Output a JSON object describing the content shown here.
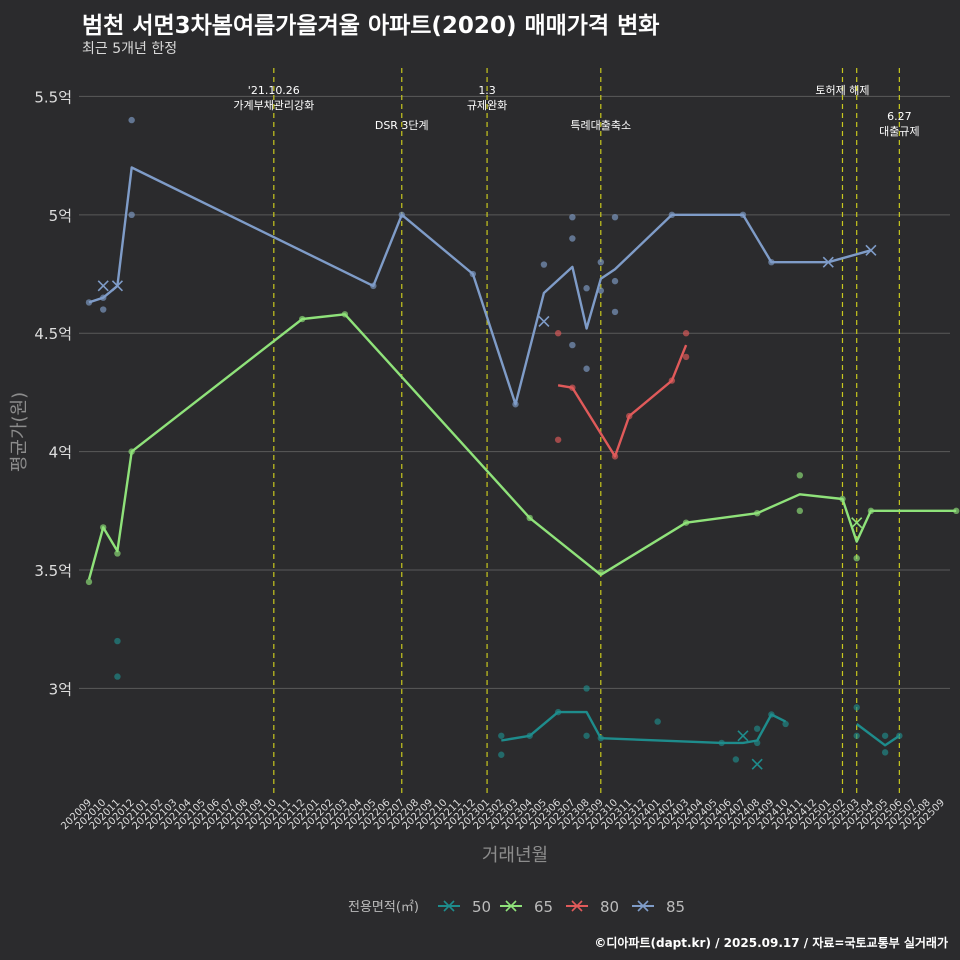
{
  "header": {
    "title": "범천 서면3차봄여름가을겨울 아파트(2020) 매매가격 변화",
    "subtitle": "최근 5개년 한정"
  },
  "footer": {
    "credit": "©디아파트(dapt.kr) / 2025.09.17 / 자료=국토교통부 실거래가"
  },
  "colors": {
    "background": "#2b2b2d",
    "grid": "#5a5a5a",
    "event_line": "#c8c81e",
    "s50": "#1e8c8c",
    "s65": "#8fe27a",
    "s80": "#e05a5a",
    "s85": "#7f9cc8"
  },
  "chart_data": {
    "type": "line",
    "title": "범천 서면3차봄여름가을겨울 아파트(2020) 매매가격 변화",
    "xlabel": "거래년월",
    "ylabel": "평균가(원)",
    "ylim": [
      2.55,
      5.62
    ],
    "yticks": [
      {
        "value": 3,
        "label": "3억"
      },
      {
        "value": 3.5,
        "label": "3.5억"
      },
      {
        "value": 4,
        "label": "4억"
      },
      {
        "value": 4.5,
        "label": "4.5억"
      },
      {
        "value": 5,
        "label": "5억"
      },
      {
        "value": 5.5,
        "label": "5.5억"
      }
    ],
    "categories": [
      "202009",
      "202010",
      "202011",
      "202012",
      "202101",
      "202102",
      "202103",
      "202104",
      "202105",
      "202106",
      "202107",
      "202108",
      "202109",
      "202110",
      "202111",
      "202112",
      "202201",
      "202202",
      "202203",
      "202204",
      "202205",
      "202206",
      "202207",
      "202208",
      "202209",
      "202210",
      "202211",
      "202212",
      "202301",
      "202302",
      "202303",
      "202304",
      "202305",
      "202306",
      "202307",
      "202308",
      "202309",
      "202310",
      "202311",
      "202312",
      "202401",
      "202402",
      "202403",
      "202404",
      "202405",
      "202406",
      "202407",
      "202408",
      "202409",
      "202410",
      "202411",
      "202412",
      "202501",
      "202502",
      "202503",
      "202504",
      "202505",
      "202506",
      "202507",
      "202508",
      "202509"
    ],
    "legend": {
      "title": "전용면적(㎡)",
      "position": "bottom",
      "entries": [
        "50",
        "65",
        "80",
        "85"
      ]
    },
    "events": [
      {
        "x": 13.0,
        "lines": [
          "'21.10.26",
          "가계부채관리강화"
        ],
        "row": 0
      },
      {
        "x": 22.0,
        "lines": [
          "DSR 3단계"
        ],
        "row": 1
      },
      {
        "x": 28.0,
        "lines": [
          "1.3",
          "규제완화"
        ],
        "row": 0
      },
      {
        "x": 36.0,
        "lines": [
          "특례대출축소"
        ],
        "row": 1
      },
      {
        "x": 53.0,
        "lines": [
          "토허제 해제"
        ],
        "row": 0
      },
      {
        "x": 54.0,
        "lines": [],
        "row": 0
      },
      {
        "x": 57.0,
        "lines": [
          "6.27",
          "대출규제"
        ],
        "row": 1
      }
    ],
    "series": [
      {
        "name": "50",
        "color": "#1e8c8c",
        "line": [
          [
            29,
            2.78
          ],
          [
            31,
            2.8
          ],
          [
            33,
            2.9
          ],
          [
            35,
            2.9
          ],
          [
            36,
            2.79
          ],
          [
            44.5,
            2.77
          ],
          [
            46,
            2.77
          ],
          [
            47,
            2.78
          ],
          [
            48,
            2.89
          ],
          [
            49,
            2.86
          ]
        ],
        "line2": [
          [
            54,
            2.85
          ],
          [
            56,
            2.76
          ],
          [
            57,
            2.8
          ]
        ],
        "points": [
          [
            2,
            3.2
          ],
          [
            2,
            3.05
          ],
          [
            29,
            2.8
          ],
          [
            29,
            2.72
          ],
          [
            31,
            2.8
          ],
          [
            33,
            2.9
          ],
          [
            35,
            3.0
          ],
          [
            35,
            2.8
          ],
          [
            36,
            2.79
          ],
          [
            40,
            2.86
          ],
          [
            44.5,
            2.77
          ],
          [
            45.5,
            2.7
          ],
          [
            47,
            2.83
          ],
          [
            47,
            2.77
          ],
          [
            48,
            2.89
          ],
          [
            49,
            2.85
          ],
          [
            54,
            2.92
          ],
          [
            54,
            2.8
          ],
          [
            56,
            2.8
          ],
          [
            56,
            2.73
          ],
          [
            57,
            2.8
          ]
        ],
        "crosses": [
          [
            46,
            2.8
          ],
          [
            47,
            2.68
          ]
        ]
      },
      {
        "name": "65",
        "color": "#8fe27a",
        "line": [
          [
            0,
            3.46
          ],
          [
            1,
            3.68
          ],
          [
            2,
            3.58
          ],
          [
            3,
            4.0
          ],
          [
            15,
            4.56
          ],
          [
            18,
            4.58
          ],
          [
            31,
            3.72
          ],
          [
            36,
            3.48
          ],
          [
            42,
            3.7
          ],
          [
            47,
            3.74
          ],
          [
            50,
            3.82
          ],
          [
            53,
            3.8
          ],
          [
            54,
            3.62
          ],
          [
            55,
            3.75
          ],
          [
            61,
            3.75
          ]
        ],
        "points": [
          [
            0,
            3.45
          ],
          [
            1,
            3.68
          ],
          [
            2,
            3.57
          ],
          [
            3,
            4.0
          ],
          [
            15,
            4.56
          ],
          [
            18,
            4.58
          ],
          [
            31,
            3.72
          ],
          [
            36,
            3.49
          ],
          [
            42,
            3.7
          ],
          [
            47,
            3.74
          ],
          [
            50,
            3.9
          ],
          [
            50,
            3.75
          ],
          [
            53,
            3.8
          ],
          [
            54,
            3.55
          ],
          [
            55,
            3.75
          ],
          [
            61,
            3.75
          ]
        ],
        "crosses": [
          [
            54,
            3.7
          ]
        ]
      },
      {
        "name": "80",
        "color": "#e05a5a",
        "line": [
          [
            33,
            4.28
          ],
          [
            34,
            4.27
          ],
          [
            37,
            3.98
          ],
          [
            38,
            4.15
          ],
          [
            41,
            4.3
          ],
          [
            42,
            4.45
          ]
        ],
        "points": [
          [
            33,
            4.5
          ],
          [
            33,
            4.05
          ],
          [
            34,
            4.27
          ],
          [
            37,
            3.98
          ],
          [
            38,
            4.15
          ],
          [
            41,
            4.3
          ],
          [
            42,
            4.5
          ],
          [
            42,
            4.4
          ]
        ],
        "crosses": []
      },
      {
        "name": "85",
        "color": "#7f9cc8",
        "line": [
          [
            0,
            4.63
          ],
          [
            1,
            4.65
          ],
          [
            2,
            4.7
          ],
          [
            3,
            5.2
          ],
          [
            20,
            4.7
          ],
          [
            22,
            5.0
          ],
          [
            27,
            4.75
          ],
          [
            30,
            4.2
          ],
          [
            32,
            4.67
          ],
          [
            34,
            4.78
          ],
          [
            35,
            4.52
          ],
          [
            36,
            4.73
          ],
          [
            37,
            4.77
          ],
          [
            41,
            5.0
          ],
          [
            46,
            5.0
          ],
          [
            48,
            4.8
          ],
          [
            52,
            4.8
          ],
          [
            55,
            4.85
          ]
        ],
        "points": [
          [
            0,
            4.63
          ],
          [
            1,
            4.65
          ],
          [
            1,
            4.6
          ],
          [
            3,
            5.4
          ],
          [
            3,
            5.0
          ],
          [
            20,
            4.7
          ],
          [
            22,
            5.0
          ],
          [
            27,
            4.75
          ],
          [
            30,
            4.2
          ],
          [
            32,
            4.79
          ],
          [
            34,
            4.99
          ],
          [
            34,
            4.9
          ],
          [
            34,
            4.45
          ],
          [
            35,
            4.69
          ],
          [
            35,
            4.35
          ],
          [
            36,
            4.8
          ],
          [
            36,
            4.68
          ],
          [
            37,
            4.99
          ],
          [
            37,
            4.72
          ],
          [
            37,
            4.59
          ],
          [
            41,
            5.0
          ],
          [
            46,
            5.0
          ],
          [
            48,
            4.8
          ]
        ],
        "crosses": [
          [
            1,
            4.7
          ],
          [
            2,
            4.7
          ],
          [
            32,
            4.55
          ],
          [
            52,
            4.8
          ],
          [
            55,
            4.85
          ]
        ]
      }
    ]
  }
}
